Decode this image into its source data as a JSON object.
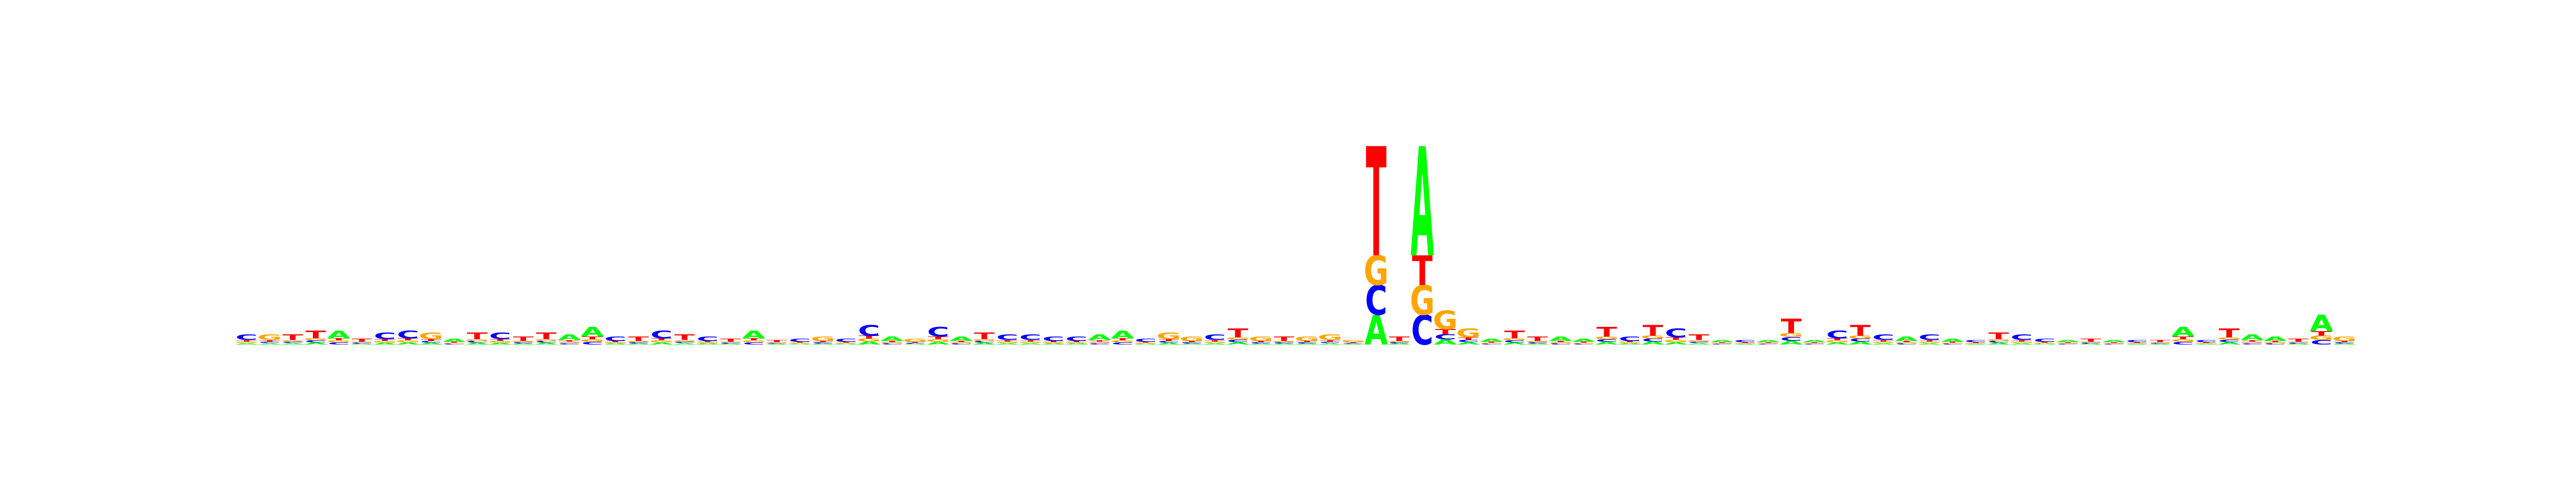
{
  "colors": {
    "A": "#00ff00",
    "C": "#0000ff",
    "G": "#ffa500",
    "T": "#ff0000",
    "background": "#ffffff"
  },
  "chart_data": {
    "type": "sequence-logo",
    "alphabet": [
      "A",
      "C",
      "G",
      "T"
    ],
    "positions": [
      {
        "top": "C",
        "height": 0.05
      },
      {
        "top": "G",
        "height": 0.05
      },
      {
        "top": "T",
        "height": 0.05
      },
      {
        "top": "T",
        "height": 0.07
      },
      {
        "top": "A",
        "height": 0.07
      },
      {
        "top": "T",
        "height": 0.03
      },
      {
        "top": "C",
        "height": 0.06
      },
      {
        "top": "C",
        "height": 0.07
      },
      {
        "top": "G",
        "height": 0.06
      },
      {
        "top": "A",
        "height": 0.03
      },
      {
        "top": "T",
        "height": 0.06
      },
      {
        "top": "C",
        "height": 0.06
      },
      {
        "top": "T",
        "height": 0.04
      },
      {
        "top": "T",
        "height": 0.06
      },
      {
        "top": "A",
        "height": 0.05
      },
      {
        "top": "A",
        "height": 0.09
      },
      {
        "top": "C",
        "height": 0.04
      },
      {
        "top": "T",
        "height": 0.04
      },
      {
        "top": "C",
        "height": 0.07
      },
      {
        "top": "T",
        "height": 0.05
      },
      {
        "top": "C",
        "height": 0.04
      },
      {
        "top": "T",
        "height": 0.03
      },
      {
        "top": "A",
        "height": 0.07
      },
      {
        "top": "T",
        "height": 0.02
      },
      {
        "top": "C",
        "height": 0.03
      },
      {
        "top": "G",
        "height": 0.04
      },
      {
        "top": "C",
        "height": 0.03
      },
      {
        "top": "C",
        "height": 0.1
      },
      {
        "top": "A",
        "height": 0.04
      },
      {
        "top": "G",
        "height": 0.03
      },
      {
        "top": "C",
        "height": 0.09
      },
      {
        "top": "A",
        "height": 0.04
      },
      {
        "top": "T",
        "height": 0.06
      },
      {
        "top": "C",
        "height": 0.05
      },
      {
        "top": "C",
        "height": 0.05
      },
      {
        "top": "C",
        "height": 0.04
      },
      {
        "top": "C",
        "height": 0.04
      },
      {
        "top": "A",
        "height": 0.05
      },
      {
        "top": "A",
        "height": 0.07
      },
      {
        "top": "C",
        "height": 0.03
      },
      {
        "top": "G",
        "height": 0.06
      },
      {
        "top": "G",
        "height": 0.04
      },
      {
        "top": "C",
        "height": 0.05
      },
      {
        "top": "T",
        "height": 0.08
      },
      {
        "top": "G",
        "height": 0.04
      },
      {
        "top": "T",
        "height": 0.04
      },
      {
        "top": "G",
        "height": 0.04
      },
      {
        "top": "G",
        "height": 0.05
      },
      {
        "top": "G",
        "height": 0.02
      },
      {
        "top": "T",
        "height": 1.0
      },
      {
        "top": "T",
        "height": 0.04
      },
      {
        "top": "A",
        "height": 1.0
      },
      {
        "top": "G",
        "height": 0.17
      },
      {
        "top": "G",
        "height": 0.08
      },
      {
        "top": "A",
        "height": 0.03
      },
      {
        "top": "T",
        "height": 0.07
      },
      {
        "top": "T",
        "height": 0.04
      },
      {
        "top": "A",
        "height": 0.04
      },
      {
        "top": "A",
        "height": 0.03
      },
      {
        "top": "T",
        "height": 0.09
      },
      {
        "top": "C",
        "height": 0.04
      },
      {
        "top": "T",
        "height": 0.1
      },
      {
        "top": "C",
        "height": 0.08
      },
      {
        "top": "T",
        "height": 0.05
      },
      {
        "top": "A",
        "height": 0.02
      },
      {
        "top": "C",
        "height": 0.02
      },
      {
        "top": "A",
        "height": 0.02
      },
      {
        "top": "T",
        "height": 0.13
      },
      {
        "top": "A",
        "height": 0.02
      },
      {
        "top": "C",
        "height": 0.07
      },
      {
        "top": "T",
        "height": 0.1
      },
      {
        "top": "C",
        "height": 0.05
      },
      {
        "top": "A",
        "height": 0.04
      },
      {
        "top": "C",
        "height": 0.05
      },
      {
        "top": "A",
        "height": 0.03
      },
      {
        "top": "C",
        "height": 0.02
      },
      {
        "top": "T",
        "height": 0.06
      },
      {
        "top": "C",
        "height": 0.05
      },
      {
        "top": "C",
        "height": 0.03
      },
      {
        "top": "A",
        "height": 0.02
      },
      {
        "top": "T",
        "height": 0.03
      },
      {
        "top": "A",
        "height": 0.02
      },
      {
        "top": "C",
        "height": 0.02
      },
      {
        "top": "T",
        "height": 0.02
      },
      {
        "top": "A",
        "height": 0.09
      },
      {
        "top": "C",
        "height": 0.02
      },
      {
        "top": "T",
        "height": 0.08
      },
      {
        "top": "A",
        "height": 0.05
      },
      {
        "top": "A",
        "height": 0.04
      },
      {
        "top": "T",
        "height": 0.03
      },
      {
        "top": "A",
        "height": 0.15
      },
      {
        "top": "G",
        "height": 0.04
      }
    ],
    "ylim": [
      0,
      1
    ],
    "grid": false,
    "legend": "none"
  }
}
